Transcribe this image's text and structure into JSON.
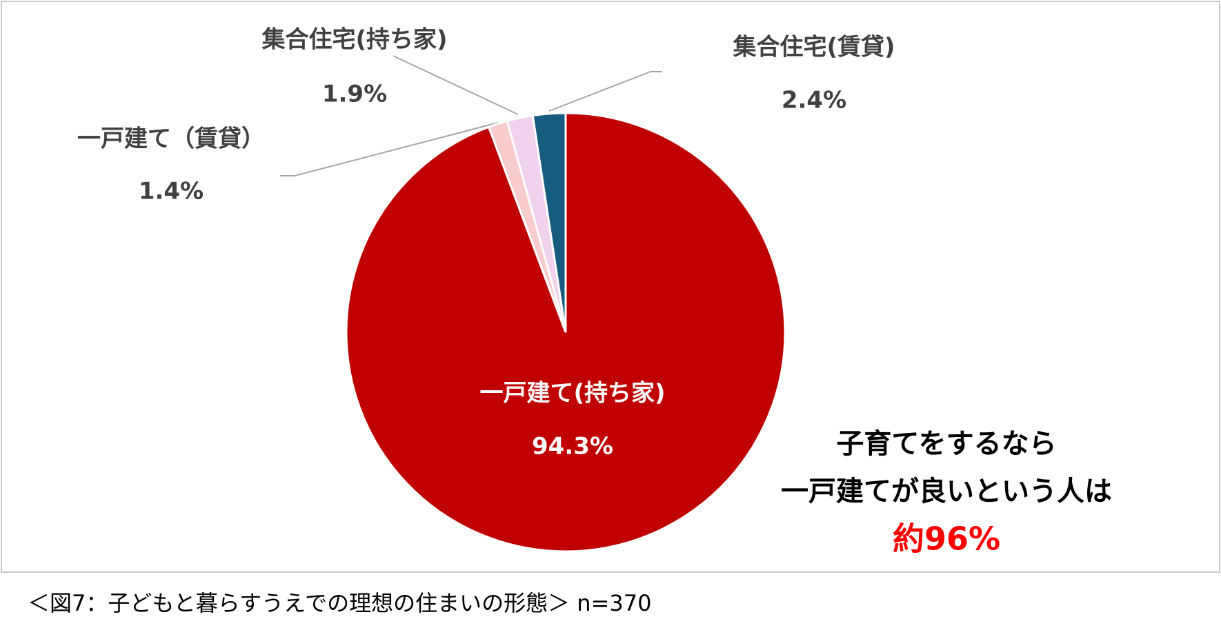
{
  "chart_data": {
    "type": "pie",
    "categories": [
      "一戸建て(持ち家)",
      "一戸建て（賃貸）",
      "集合住宅(持ち家)",
      "集合住宅(賃貸)"
    ],
    "values": [
      94.3,
      1.4,
      1.9,
      2.4
    ],
    "value_labels": [
      "94.3%",
      "1.4%",
      "1.9%",
      "2.4%"
    ],
    "colors": [
      "#c00000",
      "#f8cccc",
      "#f0d2ee",
      "#155c7e"
    ],
    "annotations": [
      "子育てをするなら",
      "一戸建てが良いという人は",
      "約96%"
    ],
    "caption": "＜図7：子どもと暮らすうえでの理想の住まいの形態＞ n=370"
  }
}
